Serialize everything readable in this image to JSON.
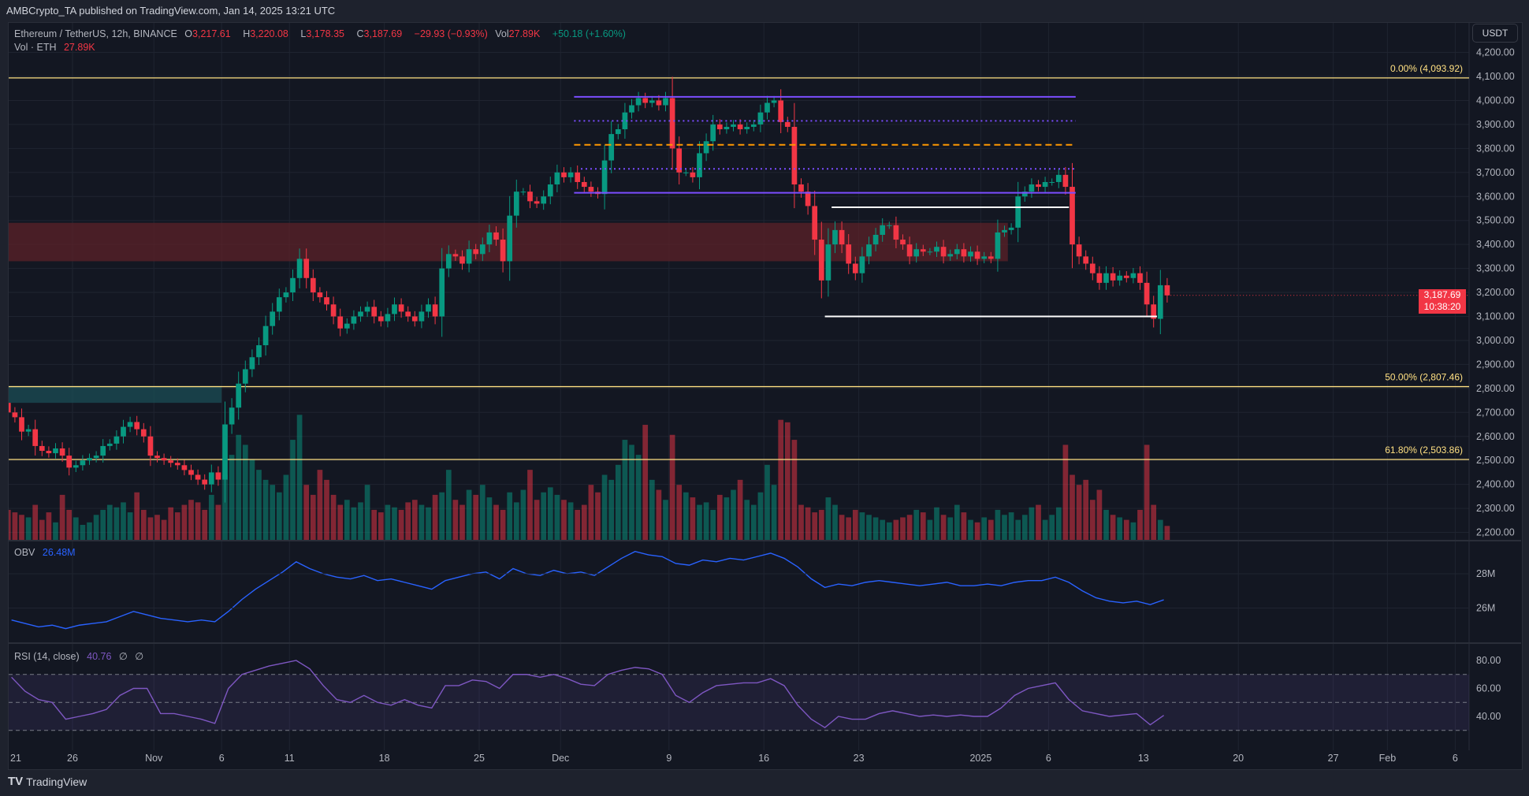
{
  "publisher": "AMBCrypto_TA published on TradingView.com, Jan 14, 2025 13:21 UTC",
  "legend": {
    "symbol": "Ethereum / TetherUS, 12h, BINANCE",
    "o_label": "O",
    "o": "3,217.61",
    "h_label": "H",
    "h": "3,220.08",
    "l_label": "L",
    "l": "3,178.35",
    "c_label": "C",
    "c": "3,187.69",
    "change": "−29.93 (−0.93%)",
    "vol_label": "Vol",
    "vol": "27.89K",
    "vol_change": "+50.18 (+1.60%)",
    "vol_row_label": "Vol · ETH",
    "vol_row_value": "27.89K"
  },
  "currency_button": "USDT",
  "last_price": {
    "price": "3,187.69",
    "countdown": "10:38:20"
  },
  "obv_legend": {
    "label": "OBV",
    "value": "26.48M"
  },
  "rsi_legend": {
    "label": "RSI (14, close)",
    "value": "40.76",
    "extra1": "∅",
    "extra2": "∅"
  },
  "footer_logo": "TradingView",
  "colors": {
    "up": "#089981",
    "down": "#f23645",
    "fib": "#ffe082",
    "obv": "#2962ff",
    "rsi": "#7e57c2",
    "zone_red": "#5c2228",
    "zone_teal": "#1b4e55",
    "drawing_purple": "#7b4dff",
    "drawing_orange": "#ff9800"
  },
  "chart_data": {
    "type": "candlestick",
    "title": "Ethereum / TetherUS, 12h, BINANCE",
    "interval": "12h",
    "start_date": "2024-10-21",
    "price_axis": {
      "min": 2200,
      "max": 4200,
      "step": 100,
      "ticks": [
        "4,200.00",
        "4,100.00",
        "4,000.00",
        "3,900.00",
        "3,800.00",
        "3,700.00",
        "3,600.00",
        "3,500.00",
        "3,400.00",
        "3,300.00",
        "3,200.00",
        "3,100.00",
        "3,000.00",
        "2,900.00",
        "2,800.00",
        "2,700.00",
        "2,600.00",
        "2,500.00",
        "2,400.00",
        "2,300.00",
        "2,200.00"
      ]
    },
    "time_ticks": [
      {
        "label": "21",
        "day": 0
      },
      {
        "label": "26",
        "day": 5
      },
      {
        "label": "Nov",
        "day": 11
      },
      {
        "label": "6",
        "day": 16
      },
      {
        "label": "11",
        "day": 21
      },
      {
        "label": "18",
        "day": 28
      },
      {
        "label": "25",
        "day": 35
      },
      {
        "label": "Dec",
        "day": 41
      },
      {
        "label": "9",
        "day": 49
      },
      {
        "label": "16",
        "day": 56
      },
      {
        "label": "23",
        "day": 63
      },
      {
        "label": "2025",
        "day": 72
      },
      {
        "label": "6",
        "day": 77
      },
      {
        "label": "13",
        "day": 84
      },
      {
        "label": "20",
        "day": 91
      },
      {
        "label": "27",
        "day": 98
      },
      {
        "label": "Feb",
        "day": 102
      },
      {
        "label": "6",
        "day": 107
      }
    ],
    "closes": [
      2700,
      2680,
      2620,
      2630,
      2560,
      2540,
      2530,
      2550,
      2520,
      2470,
      2480,
      2500,
      2510,
      2520,
      2560,
      2570,
      2600,
      2640,
      2660,
      2630,
      2600,
      2520,
      2510,
      2500,
      2490,
      2480,
      2460,
      2440,
      2420,
      2400,
      2450,
      2420,
      2650,
      2720,
      2820,
      2880,
      2930,
      2980,
      3060,
      3120,
      3180,
      3200,
      3260,
      3340,
      3260,
      3200,
      3180,
      3150,
      3100,
      3050,
      3070,
      3100,
      3120,
      3140,
      3100,
      3080,
      3110,
      3150,
      3120,
      3100,
      3080,
      3120,
      3150,
      3100,
      3300,
      3360,
      3350,
      3320,
      3380,
      3360,
      3400,
      3450,
      3420,
      3330,
      3520,
      3620,
      3620,
      3580,
      3570,
      3600,
      3650,
      3700,
      3680,
      3700,
      3660,
      3640,
      3620,
      3610,
      3750,
      3860,
      3880,
      3950,
      3980,
      4010,
      3990,
      4000,
      3980,
      4010,
      3800,
      3700,
      3700,
      3680,
      3780,
      3830,
      3900,
      3880,
      3890,
      3900,
      3880,
      3890,
      3900,
      3950,
      3990,
      4000,
      3910,
      3890,
      3650,
      3620,
      3560,
      3420,
      3250,
      3400,
      3460,
      3400,
      3320,
      3280,
      3350,
      3400,
      3440,
      3480,
      3480,
      3420,
      3400,
      3350,
      3380,
      3370,
      3370,
      3390,
      3350,
      3360,
      3380,
      3350,
      3370,
      3340,
      3350,
      3340,
      3450,
      3460,
      3470,
      3600,
      3620,
      3650,
      3640,
      3660,
      3660,
      3690,
      3640,
      3400,
      3350,
      3320,
      3280,
      3240,
      3280,
      3250,
      3270,
      3260,
      3280,
      3240,
      3150,
      3090,
      3230,
      3187.69
    ],
    "first_open": 2740,
    "volume_k": [
      60,
      55,
      50,
      45,
      70,
      40,
      55,
      35,
      90,
      60,
      45,
      30,
      35,
      50,
      60,
      70,
      65,
      75,
      55,
      95,
      60,
      45,
      50,
      40,
      65,
      55,
      70,
      80,
      75,
      60,
      90,
      70,
      130,
      170,
      210,
      190,
      160,
      140,
      120,
      110,
      95,
      130,
      200,
      250,
      110,
      90,
      140,
      120,
      90,
      70,
      80,
      65,
      75,
      110,
      60,
      55,
      70,
      65,
      60,
      75,
      80,
      70,
      65,
      90,
      95,
      140,
      80,
      70,
      100,
      90,
      110,
      85,
      70,
      60,
      95,
      75,
      100,
      140,
      80,
      95,
      105,
      90,
      80,
      75,
      60,
      70,
      110,
      95,
      130,
      120,
      150,
      200,
      190,
      170,
      230,
      120,
      100,
      80,
      210,
      110,
      95,
      85,
      70,
      75,
      60,
      90,
      85,
      100,
      120,
      80,
      70,
      95,
      150,
      110,
      240,
      235,
      200,
      70,
      65,
      55,
      60,
      85,
      70,
      50,
      45,
      60,
      55,
      50,
      45,
      40,
      35,
      40,
      45,
      50,
      60,
      55,
      40,
      65,
      50,
      45,
      70,
      55,
      40,
      35,
      45,
      40,
      60,
      50,
      55,
      40,
      50,
      65,
      70,
      40,
      50,
      65,
      190,
      130,
      110,
      120,
      80,
      100,
      60,
      50,
      45,
      40,
      35,
      60,
      190,
      70,
      40,
      27.89
    ],
    "fib_levels": [
      {
        "label": "0.00% (4,093.92)",
        "price": 4093.92
      },
      {
        "label": "50.00% (2,807.46)",
        "price": 2807.46
      },
      {
        "label": "61.80% (2,503.86)",
        "price": 2503.86
      }
    ],
    "zones": [
      {
        "name": "supply-zone",
        "from_price": 3330,
        "to_price": 3490,
        "start_day": 0,
        "end_day": 74,
        "color": "zone_red"
      },
      {
        "name": "demand-zone",
        "from_price": 2740,
        "to_price": 2810,
        "start_day": 0,
        "end_day": 16,
        "color": "zone_teal"
      }
    ],
    "drawn_lines": [
      {
        "name": "range-high",
        "price": 4015,
        "start_day": 42,
        "end_day": 79,
        "style": "solid",
        "color": "drawing_purple"
      },
      {
        "name": "range-upper-quarter",
        "price": 3915,
        "start_day": 42,
        "end_day": 79,
        "style": "dotted",
        "color": "drawing_purple"
      },
      {
        "name": "range-mid",
        "price": 3815,
        "start_day": 42,
        "end_day": 79,
        "style": "dashed",
        "color": "drawing_orange"
      },
      {
        "name": "range-lower-quarter",
        "price": 3715,
        "start_day": 42.5,
        "end_day": 79,
        "style": "dotted",
        "color": "drawing_purple"
      },
      {
        "name": "range-low",
        "price": 3615,
        "start_day": 42,
        "end_day": 79,
        "style": "solid",
        "color": "drawing_purple"
      },
      {
        "name": "consolidation-high",
        "price": 3555,
        "start_day": 61,
        "end_day": 78.5,
        "style": "solid",
        "color": "#ffffff"
      },
      {
        "name": "consolidation-low",
        "price": 3100,
        "start_day": 60.5,
        "end_day": 85,
        "style": "solid",
        "color": "#ffffff"
      }
    ],
    "obv": {
      "axis_ticks": [
        "28M",
        "26M"
      ],
      "values": [
        25.3,
        25.1,
        24.9,
        25.0,
        24.8,
        25.0,
        25.1,
        25.2,
        25.5,
        25.8,
        25.6,
        25.4,
        25.3,
        25.2,
        25.3,
        25.2,
        25.8,
        26.5,
        27.1,
        27.6,
        28.1,
        28.7,
        28.3,
        28.0,
        27.8,
        27.7,
        27.9,
        27.6,
        27.7,
        27.5,
        27.3,
        27.1,
        27.6,
        27.8,
        28.0,
        28.1,
        27.7,
        28.3,
        28.0,
        27.9,
        28.2,
        28.0,
        28.1,
        27.9,
        28.4,
        28.9,
        29.3,
        29.1,
        29.0,
        28.6,
        28.5,
        28.8,
        28.7,
        28.9,
        28.8,
        29.0,
        29.2,
        28.9,
        28.4,
        27.7,
        27.2,
        27.4,
        27.3,
        27.5,
        27.6,
        27.5,
        27.4,
        27.3,
        27.4,
        27.5,
        27.3,
        27.3,
        27.4,
        27.3,
        27.5,
        27.6,
        27.6,
        27.8,
        27.5,
        27.0,
        26.6,
        26.4,
        26.3,
        26.4,
        26.2,
        26.48
      ]
    },
    "rsi": {
      "axis_ticks": [
        "80.00",
        "60.00",
        "40.00"
      ],
      "upper_band": 70,
      "middle_band": 50,
      "lower_band": 30,
      "values": [
        68,
        58,
        52,
        50,
        38,
        40,
        42,
        45,
        55,
        60,
        60,
        42,
        42,
        40,
        38,
        35,
        60,
        70,
        73,
        76,
        78,
        80,
        74,
        62,
        52,
        50,
        55,
        50,
        48,
        52,
        48,
        46,
        62,
        62,
        66,
        65,
        60,
        70,
        70,
        68,
        70,
        67,
        63,
        62,
        70,
        73,
        75,
        74,
        70,
        55,
        50,
        57,
        62,
        63,
        64,
        64,
        67,
        62,
        48,
        38,
        32,
        40,
        38,
        38,
        42,
        44,
        42,
        40,
        41,
        40,
        41,
        40,
        40,
        46,
        55,
        60,
        62,
        64,
        52,
        44,
        42,
        40,
        41,
        42,
        34,
        40.76
      ]
    }
  }
}
